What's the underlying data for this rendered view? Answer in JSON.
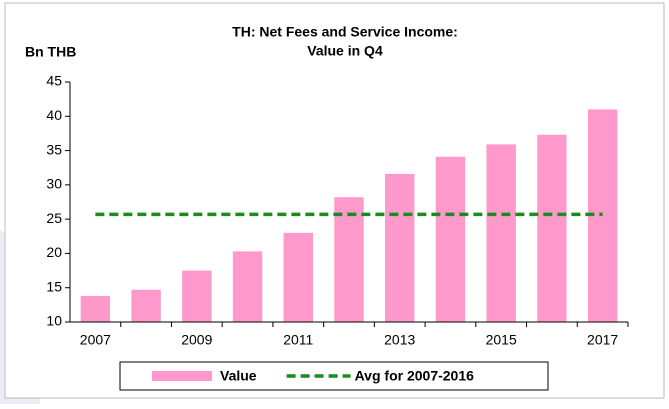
{
  "chart_data": {
    "type": "bar",
    "title": [
      "TH: Net Fees and Service Income:",
      "Value in Q4"
    ],
    "y_axis_label": "Bn THB",
    "categories": [
      "2007",
      null,
      "2009",
      null,
      "2011",
      null,
      "2013",
      null,
      "2015",
      null,
      "2017"
    ],
    "series": [
      {
        "name": "Value",
        "color": "#ff99cc",
        "type": "bar",
        "values": [
          13.8,
          14.7,
          17.5,
          20.3,
          23.0,
          28.2,
          31.6,
          34.1,
          35.9,
          37.3,
          41.0
        ]
      },
      {
        "name": "Avg for 2007-2016",
        "color": "#1a8c1a",
        "type": "line",
        "dashed": true,
        "values": [
          25.7,
          25.7,
          25.7,
          25.7,
          25.7,
          25.7,
          25.7,
          25.7,
          25.7,
          25.7,
          25.7
        ]
      }
    ],
    "ylim": [
      10,
      45
    ],
    "yticks": [
      10,
      15,
      20,
      25,
      30,
      35,
      40,
      45
    ],
    "grid": false,
    "legend": "bottom"
  }
}
